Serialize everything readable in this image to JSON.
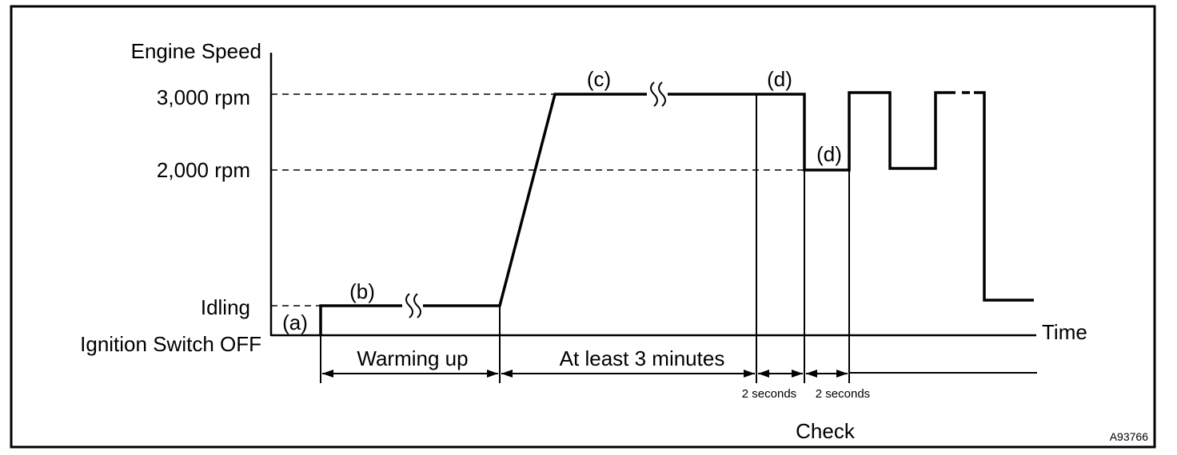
{
  "axes": {
    "y_title": "Engine Speed",
    "x_title": "Time",
    "y_levels": {
      "rpm_3000": "3,000 rpm",
      "rpm_2000": "2,000 rpm",
      "idling": "Idling",
      "off": "Ignition Switch OFF"
    }
  },
  "steps": {
    "a": "(a)",
    "b": "(b)",
    "c": "(c)",
    "d1": "(d)",
    "d2": "(d)"
  },
  "intervals": {
    "warming_up": "Warming up",
    "at_least_3_minutes": "At least 3 minutes",
    "two_seconds_1": "2 seconds",
    "two_seconds_2": "2 seconds"
  },
  "check_label": "Check",
  "figure_id": "A93766",
  "colors": {
    "ink": "#000000",
    "background": "#ffffff"
  }
}
